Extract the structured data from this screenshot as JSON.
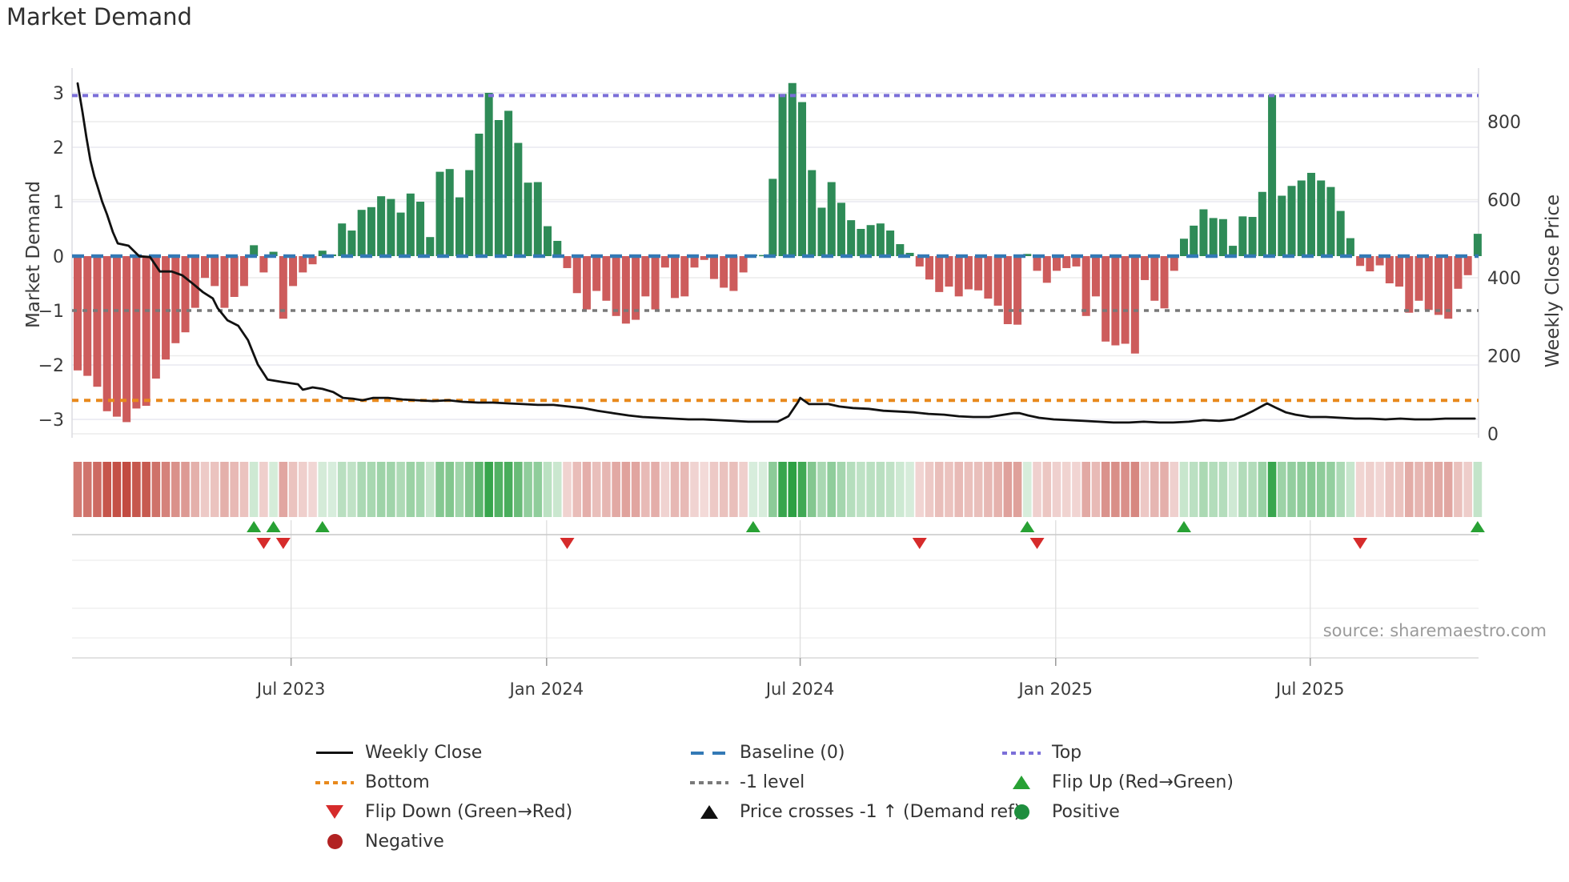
{
  "title": "Market Demand",
  "source": "source: sharemaestro.com",
  "axes": {
    "left_label": "Market Demand",
    "right_label": "Weekly Close Price",
    "left_ticks": [
      "3",
      "2",
      "1",
      "0",
      "−1",
      "−2",
      "−3"
    ],
    "left_tick_values": [
      3,
      2,
      1,
      0,
      -1,
      -2,
      -3
    ],
    "right_ticks": [
      "800",
      "600",
      "400",
      "200",
      "0"
    ],
    "right_tick_values": [
      800,
      600,
      400,
      200,
      0
    ],
    "x_ticks": [
      {
        "label": "Jul 2023",
        "week": 21.8
      },
      {
        "label": "Jan 2024",
        "week": 47.9
      },
      {
        "label": "Jul 2024",
        "week": 73.8
      },
      {
        "label": "Jan 2025",
        "week": 99.9
      },
      {
        "label": "Jul 2025",
        "week": 125.9
      }
    ]
  },
  "legend": {
    "weekly_close": "Weekly Close",
    "bottom": "Bottom",
    "flip_down": "Flip Down (Green→Red)",
    "negative": "Negative",
    "baseline": "Baseline (0)",
    "minus1": "-1 level",
    "price_cross": "Price crosses -1 ↑ (Demand ref)",
    "top": "Top",
    "flip_up": "Flip Up (Red→Green)",
    "positive": "Positive"
  },
  "colors": {
    "bar_negative": "#cd5c5c",
    "bar_positive": "#2e8b57",
    "baseline": "#3379b5",
    "top_line": "#7b6fd8",
    "minus1_line": "#787878",
    "bottom_line": "#e8891c",
    "price_line": "#111111",
    "flip_up_marker": "#28a134",
    "flip_down_marker": "#d62b2b",
    "grid": "#e9e9f0",
    "heat_green": "#2ca042",
    "heat_red": "#c04439"
  },
  "chart_data": {
    "type": "bar+line",
    "title": "Market Demand",
    "ylabel_left": "Market Demand",
    "ylabel_right": "Weekly Close Price",
    "ylim_left": [
      -3.3,
      3.4
    ],
    "ylim_right": [
      0,
      900
    ],
    "x_axis": "weekly, Jan 2023 - Nov 2025",
    "ref_lines": {
      "baseline": 0,
      "top": 2.95,
      "bottom": -2.65,
      "minus1_level": -1
    },
    "demand_weekly": [
      -2.1,
      -2.2,
      -2.4,
      -2.85,
      -2.95,
      -3.05,
      -2.8,
      -2.75,
      -2.25,
      -1.9,
      -1.6,
      -1.4,
      -0.95,
      -0.4,
      -0.55,
      -0.95,
      -0.75,
      -0.55,
      0.2,
      -0.3,
      0.08,
      -1.15,
      -0.55,
      -0.3,
      -0.15,
      0.1,
      0.03,
      0.6,
      0.47,
      0.85,
      0.9,
      1.1,
      1.05,
      0.8,
      1.15,
      1.0,
      0.35,
      1.55,
      1.6,
      1.08,
      1.58,
      2.25,
      3.0,
      2.5,
      2.67,
      2.08,
      1.35,
      1.36,
      0.55,
      0.28,
      -0.22,
      -0.68,
      -0.98,
      -0.64,
      -0.82,
      -1.1,
      -1.24,
      -1.17,
      -0.74,
      -0.98,
      -0.21,
      -0.77,
      -0.74,
      -0.21,
      -0.07,
      -0.42,
      -0.58,
      -0.64,
      -0.3,
      0.03,
      0.02,
      1.42,
      2.98,
      3.18,
      2.83,
      1.58,
      0.89,
      1.36,
      0.98,
      0.66,
      0.5,
      0.57,
      0.6,
      0.47,
      0.22,
      0.06,
      -0.19,
      -0.43,
      -0.66,
      -0.56,
      -0.74,
      -0.61,
      -0.63,
      -0.78,
      -0.91,
      -1.25,
      -1.26,
      0.04,
      -0.27,
      -0.49,
      -0.27,
      -0.22,
      -0.19,
      -1.1,
      -0.74,
      -1.57,
      -1.64,
      -1.61,
      -1.79,
      -0.44,
      -0.82,
      -0.96,
      -0.27,
      0.32,
      0.56,
      0.86,
      0.7,
      0.68,
      0.19,
      0.73,
      0.72,
      1.18,
      2.96,
      1.11,
      1.29,
      1.39,
      1.53,
      1.39,
      1.27,
      0.83,
      0.33,
      -0.18,
      -0.28,
      -0.17,
      -0.5,
      -0.56,
      -1.04,
      -0.82,
      -0.99,
      -1.08,
      -1.15,
      -0.6,
      -0.35,
      0.41
    ],
    "price_line": {
      "x_week": [
        0,
        0.5,
        0.9,
        1.3,
        1.7,
        2,
        2.5,
        3,
        3.6,
        4.1,
        5.2,
        6.3,
        7.4,
        8.4,
        9.6,
        10.7,
        11.8,
        12.8,
        13.8,
        14.3,
        15.3,
        16.4,
        17.4,
        18.4,
        19.4,
        20.9,
        22.5,
        23,
        24,
        25,
        26.1,
        27.1,
        28.1,
        29.1,
        30.2,
        31.7,
        33.2,
        34.7,
        36.3,
        37.9,
        39.3,
        40.9,
        42.4,
        44,
        45.5,
        47,
        48.6,
        50.1,
        51.6,
        53.1,
        54.7,
        56.3,
        57.7,
        59.3,
        60.8,
        62.4,
        63.9,
        65.4,
        67,
        68.5,
        70,
        71.5,
        72.6,
        73.6,
        73.8,
        74.7,
        75.6,
        76.7,
        77.8,
        79.2,
        80.8,
        82.3,
        83.9,
        85.4,
        86.9,
        88.5,
        90,
        91.5,
        93.1,
        94.6,
        95.6,
        96.2,
        97.1,
        98.2,
        99.7,
        101.2,
        102.8,
        104.3,
        105.8,
        107.4,
        108.9,
        110.5,
        111.9,
        113.5,
        115,
        116.6,
        118.1,
        119.1,
        120.1,
        121.2,
        121.5,
        122.3,
        123.4,
        124.4,
        125.9,
        127.5,
        129,
        130.5,
        132,
        133.6,
        135.1,
        136.6,
        138.2,
        139.7,
        141.3,
        142.7
      ],
      "price": [
        898,
        824,
        759,
        701,
        660,
        636,
        595,
        562,
        517,
        488,
        482,
        455,
        453,
        416,
        416,
        406,
        384,
        363,
        347,
        322,
        291,
        277,
        240,
        178,
        139,
        133,
        127,
        113,
        119,
        115,
        107,
        92,
        90,
        86,
        92,
        92,
        88,
        86,
        84,
        86,
        82,
        80,
        80,
        78,
        76,
        74,
        74,
        70,
        66,
        59,
        53,
        47,
        43,
        41,
        39,
        37,
        37,
        35,
        33,
        31,
        31,
        31,
        45,
        82,
        92,
        76,
        76,
        76,
        70,
        66,
        64,
        59,
        57,
        55,
        51,
        49,
        45,
        43,
        43,
        49,
        53,
        53,
        47,
        41,
        37,
        35,
        33,
        31,
        29,
        29,
        31,
        29,
        29,
        31,
        35,
        33,
        37,
        47,
        59,
        74,
        78,
        68,
        55,
        49,
        43,
        43,
        41,
        39,
        39,
        37,
        39,
        37,
        37,
        39,
        39,
        39
      ]
    },
    "flip_markers": {
      "up_weeks": [
        18,
        20,
        25,
        69,
        97,
        113,
        143
      ],
      "down_weeks": [
        19,
        21,
        50,
        86,
        98,
        131
      ]
    },
    "price_cross_markers_weeks": [],
    "heatmap": "one cell per week, color = demand sign/intensity",
    "legend_position": "bottom, 3 columns",
    "grid": true
  }
}
